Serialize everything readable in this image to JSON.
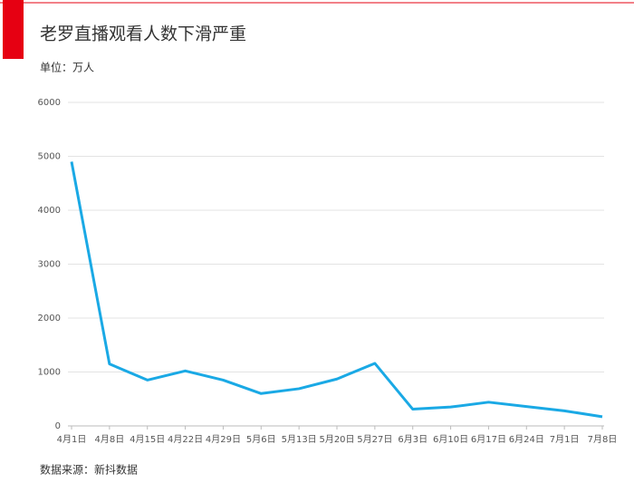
{
  "chart_data": {
    "type": "line",
    "title": "老罗直播观看人数下滑严重",
    "subtitle": "单位：万人",
    "source": "数据来源：新抖数据",
    "categories": [
      "4月1日",
      "4月8日",
      "4月15日",
      "4月22日",
      "4月29日",
      "5月6日",
      "5月13日",
      "5月20日",
      "5月27日",
      "6月3日",
      "6月10日",
      "6月17日",
      "6月24日",
      "7月1日",
      "7月8日"
    ],
    "values": [
      4900,
      1150,
      850,
      1020,
      850,
      600,
      690,
      870,
      1160,
      310,
      350,
      440,
      360,
      280,
      170
    ],
    "color": "#1aa9e5",
    "ylim": [
      0,
      6000
    ],
    "yticks": [
      0,
      1000,
      2000,
      3000,
      4000,
      5000,
      6000
    ],
    "grid": true
  }
}
